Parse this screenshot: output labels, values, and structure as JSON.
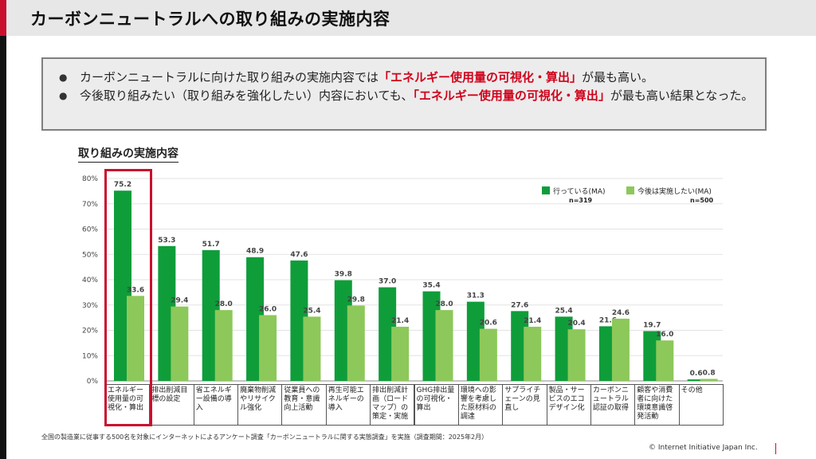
{
  "header": {
    "title": "カーボンニュートラルへの取り組みの実施内容"
  },
  "summary": {
    "bullet1_pre": "カーボンニュートラルに向けた取り組みの実施内容では",
    "bullet1_hl": "「エネルギー使用量の可視化・算出」",
    "bullet1_post": "が最も高い。",
    "bullet2_pre": "今後取り組みたい（取り組みを強化したい）内容においても、",
    "bullet2_hl": "「エネルギー使用量の可視化・算出」",
    "bullet2_post": "が最も高い結果となった。"
  },
  "chart_title": "取り組みの実施内容",
  "chart_data": {
    "type": "bar",
    "title": "取り組みの実施内容",
    "ylim": [
      0,
      80
    ],
    "yticks": [
      "0%",
      "10%",
      "20%",
      "30%",
      "40%",
      "50%",
      "60%",
      "70%",
      "80%"
    ],
    "categories": [
      "エネルギー使用量の可視化・算出",
      "排出削減目標の設定",
      "省エネルギー設備の導入",
      "廃棄物削減やリサイクル強化",
      "従業員への教育・意識向上活動",
      "再生可能エネルギーの導入",
      "排出削減計画（ロードマップ）の策定・実施",
      "GHG排出量の可視化・算出",
      "環境への影響を考慮した原材料の調達",
      "サプライチェーンの見直し",
      "製品・サービスのエコデザイン化",
      "カーボンニュートラル認証の取得",
      "顧客や消費者に向けた環境意識啓発活動",
      "その他"
    ],
    "series": [
      {
        "name": "行っている(MA)",
        "n": "n=319",
        "color": "#0f9d3a",
        "values": [
          75.2,
          53.3,
          51.7,
          48.9,
          47.6,
          39.8,
          37.0,
          35.4,
          31.3,
          27.6,
          25.4,
          21.6,
          19.7,
          0.6
        ],
        "labels": [
          "75.2",
          "53.3",
          "51.7",
          "48.9",
          "47.6",
          "39.8",
          "37.0",
          "35.4",
          "31.3",
          "27.6",
          "25.4",
          "21.6",
          "19.7",
          "0.6"
        ]
      },
      {
        "name": "今後は実施したい(MA)",
        "n": "n=500",
        "color": "#8dc85a",
        "values": [
          33.6,
          29.4,
          28.0,
          26.0,
          25.4,
          29.8,
          21.4,
          28.0,
          20.6,
          21.4,
          20.4,
          24.6,
          16.0,
          0.8
        ],
        "labels": [
          "33.6",
          "29.4",
          "28.0",
          "26.0",
          "25.4",
          "29.8",
          "21.4",
          "28.0",
          "20.6",
          "21.4",
          "20.4",
          "24.6",
          "16.0",
          "0.8"
        ]
      }
    ],
    "legend_position": "top-right",
    "highlighted_category": "エネルギー使用量の可視化・算出"
  },
  "footnote": "全国の製造業に従事する500名を対象にインターネットによるアンケート調査「カーボンニュートラルに関する実態調査」を実施（調査期間：2025年2月）",
  "copyright": "© Internet Initiative Japan Inc."
}
